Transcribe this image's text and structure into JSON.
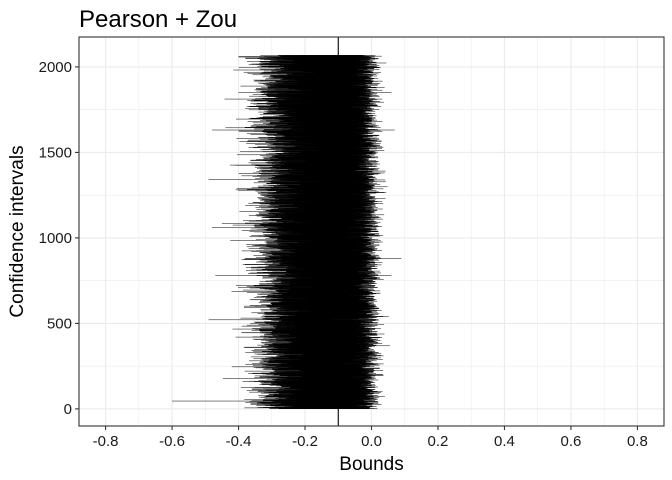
{
  "chart_data": {
    "type": "interval",
    "title": "Pearson + Zou",
    "xlabel": "Bounds",
    "ylabel": "Confidence intervals",
    "xlim": [
      -0.88,
      0.88
    ],
    "ylim": [
      -100,
      2175
    ],
    "x_ticks": [
      -0.8,
      -0.6,
      -0.4,
      -0.2,
      0.0,
      0.2,
      0.4,
      0.6,
      0.8
    ],
    "x_tick_labels": [
      "-0.8",
      "-0.6",
      "-0.4",
      "-0.2",
      "0.0",
      "0.2",
      "0.4",
      "0.6",
      "0.8"
    ],
    "y_ticks": [
      0,
      500,
      1000,
      1500,
      2000
    ],
    "y_tick_labels": [
      "0",
      "500",
      "1000",
      "1500",
      "2000"
    ],
    "n_intervals": 2068,
    "reference_line_x": -0.1,
    "interval_distribution": {
      "lower_bound_mean": -0.29,
      "lower_bound_sd": 0.045,
      "lower_bound_min": -0.6,
      "upper_bound_mean": -0.01,
      "upper_bound_sd": 0.02,
      "upper_bound_max": 0.09
    },
    "sample_intervals": [
      {
        "index": 45,
        "lower": -0.6,
        "upper": -0.1
      },
      {
        "index": 520,
        "lower": -0.49,
        "upper": -0.12
      },
      {
        "index": 780,
        "lower": -0.47,
        "upper": 0.06
      },
      {
        "index": 880,
        "lower": -0.38,
        "upper": 0.09
      },
      {
        "index": 1060,
        "lower": -0.48,
        "upper": -0.11
      },
      {
        "index": 1340,
        "lower": -0.49,
        "upper": 0.0
      },
      {
        "index": 1630,
        "lower": -0.48,
        "upper": 0.07
      },
      {
        "index": 1850,
        "lower": -0.4,
        "upper": 0.06
      },
      {
        "index": 2060,
        "lower": -0.4,
        "upper": 0.01
      }
    ],
    "grid": true,
    "legend": "none",
    "colors": {
      "interval": "#000000",
      "reference_line": "#000000",
      "grid": "#ebebeb",
      "border": "#333333"
    }
  }
}
